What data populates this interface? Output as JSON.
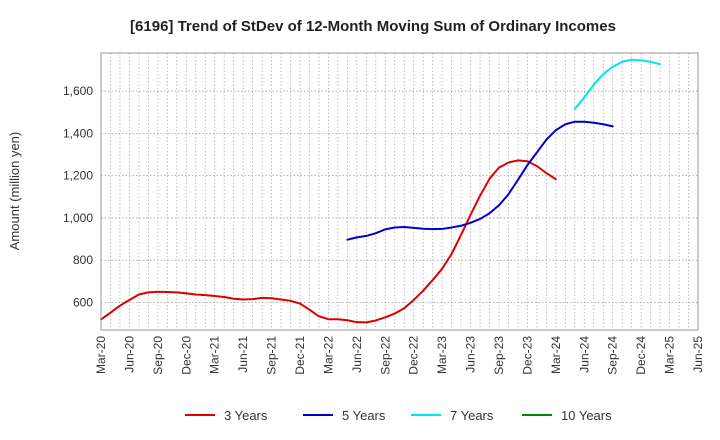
{
  "chart_data": {
    "type": "line",
    "title": "[6196]  Trend of StDev of 12-Month Moving Sum of Ordinary Incomes",
    "xlabel": "",
    "ylabel": "Amount (million yen)",
    "x_ticks": [
      "Mar-20",
      "Jun-20",
      "Sep-20",
      "Dec-20",
      "Mar-21",
      "Jun-21",
      "Sep-21",
      "Dec-21",
      "Mar-22",
      "Jun-22",
      "Sep-22",
      "Dec-22",
      "Mar-23",
      "Jun-23",
      "Sep-23",
      "Dec-23",
      "Mar-24",
      "Jun-24",
      "Sep-24",
      "Dec-24",
      "Mar-25",
      "Jun-25"
    ],
    "y_ticks": [
      "600",
      "800",
      "1,000",
      "1,200",
      "1,400",
      "1,600"
    ],
    "ylim": [
      470,
      1780
    ],
    "grid": true,
    "legend_position": "bottom",
    "series": [
      {
        "name": "3 Years",
        "color": "#dd0000",
        "start": "Mar-20",
        "values": [
          520,
          552,
          585,
          612,
          638,
          648,
          651,
          650,
          648,
          643,
          638,
          635,
          631,
          626,
          618,
          614,
          616,
          622,
          620,
          614,
          608,
          595,
          566,
          535,
          521,
          521,
          516,
          507,
          506,
          515,
          530,
          548,
          573,
          612,
          656,
          706,
          760,
          830,
          920,
          1015,
          1105,
          1185,
          1238,
          1262,
          1272,
          1268,
          1245,
          1212,
          1183
        ]
      },
      {
        "name": "5 Years",
        "color": "#0000cc",
        "start": "May-22",
        "values": [
          897,
          908,
          915,
          928,
          946,
          955,
          957,
          953,
          949,
          947,
          948,
          955,
          963,
          977,
          995,
          1022,
          1060,
          1112,
          1180,
          1250,
          1310,
          1370,
          1415,
          1443,
          1455,
          1455,
          1450,
          1443,
          1433
        ]
      },
      {
        "name": "7 Years",
        "color": "#00e5ee",
        "start": "May-24",
        "values": [
          1515,
          1570,
          1630,
          1680,
          1715,
          1738,
          1748,
          1745,
          1738,
          1727
        ]
      },
      {
        "name": "10 Years",
        "color": "#008800",
        "start": "",
        "values": []
      }
    ]
  }
}
